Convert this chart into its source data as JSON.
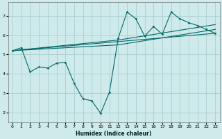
{
  "xlabel": "Humidex (Indice chaleur)",
  "background_color": "#ceeaea",
  "grid_color": "#aacece",
  "line_color": "#006868",
  "xlim": [
    -0.5,
    23.5
  ],
  "ylim": [
    1.5,
    7.7
  ],
  "xticks": [
    0,
    1,
    2,
    3,
    4,
    5,
    6,
    7,
    8,
    9,
    10,
    11,
    12,
    13,
    14,
    15,
    16,
    17,
    18,
    19,
    20,
    21,
    22,
    23
  ],
  "yticks": [
    2,
    3,
    4,
    5,
    6,
    7
  ],
  "curve1_x": [
    0,
    1,
    2,
    3,
    4,
    5,
    6,
    7,
    8,
    9,
    10,
    11,
    12,
    13,
    14,
    15,
    16,
    17,
    18,
    19,
    20,
    21,
    22,
    23
  ],
  "curve1_y": [
    5.2,
    5.35,
    4.1,
    4.35,
    4.3,
    4.55,
    4.6,
    3.5,
    2.7,
    2.6,
    1.95,
    3.05,
    5.85,
    7.2,
    6.85,
    5.95,
    6.45,
    6.05,
    7.2,
    6.85,
    6.65,
    6.5,
    6.3,
    6.1
  ],
  "line1_x": [
    0,
    23
  ],
  "line1_y": [
    5.2,
    6.1
  ],
  "line2_x": [
    0,
    12,
    23
  ],
  "line2_y": [
    5.2,
    5.5,
    6.3
  ],
  "line3_x": [
    0,
    12,
    23
  ],
  "line3_y": [
    5.2,
    5.75,
    6.55
  ]
}
